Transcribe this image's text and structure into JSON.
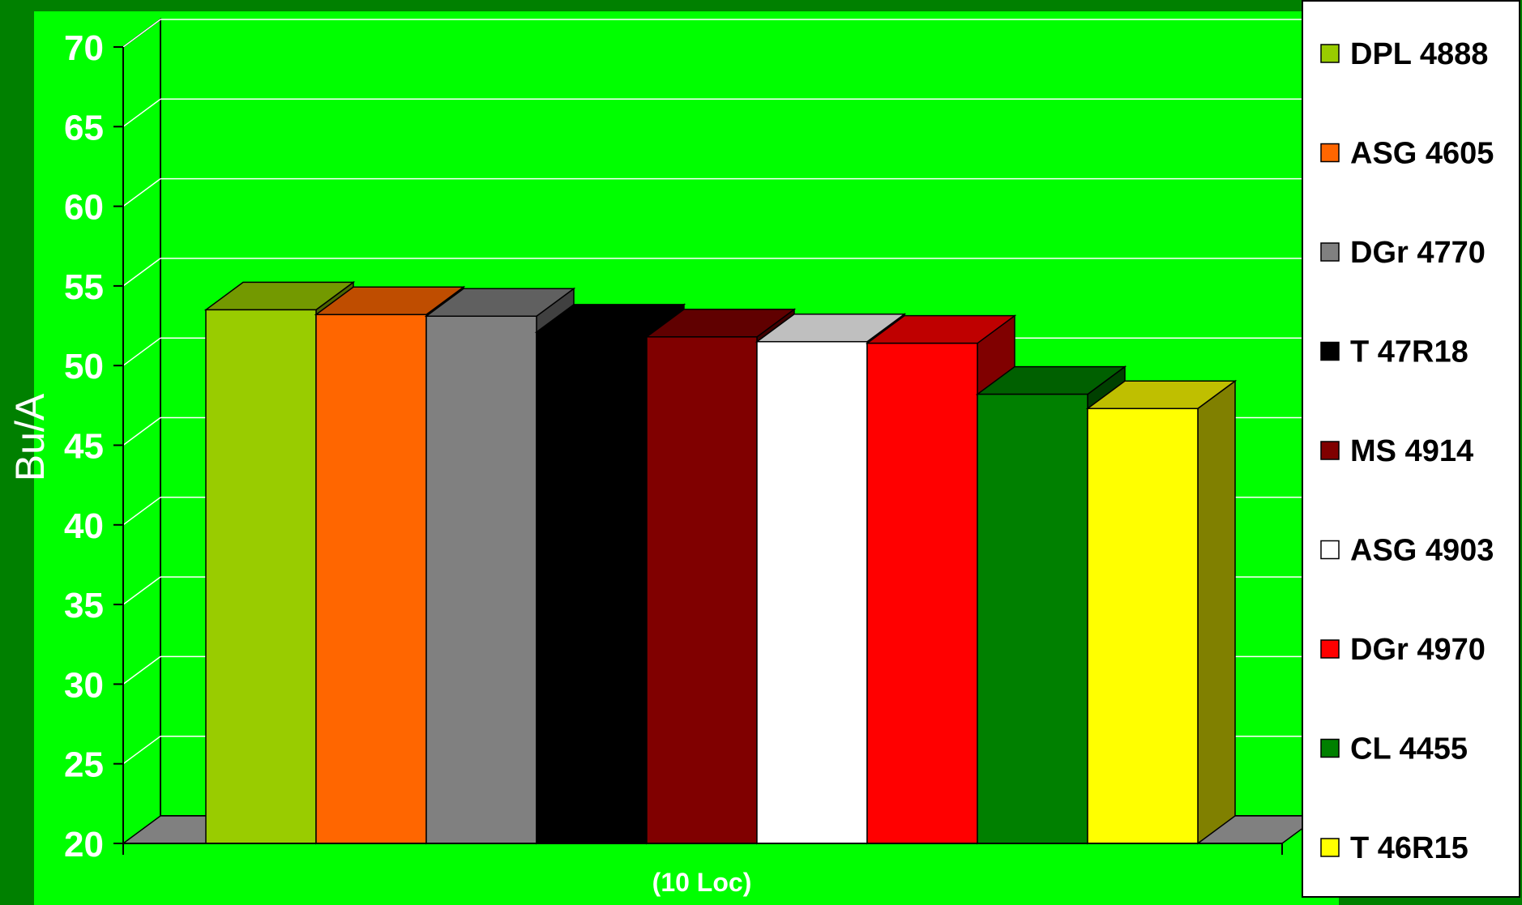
{
  "chart_data": {
    "type": "bar",
    "categories": [
      "(10 Loc)"
    ],
    "series": [
      {
        "name": "DPL 4888",
        "values": [
          53.5
        ],
        "color": "#99cc00"
      },
      {
        "name": "ASG 4605",
        "values": [
          53.2
        ],
        "color": "#ff6600"
      },
      {
        "name": "DGr 4770",
        "values": [
          53.1
        ],
        "color": "#808080"
      },
      {
        "name": "T 47R18",
        "values": [
          52.1
        ],
        "color": "#000000"
      },
      {
        "name": "MS 4914",
        "values": [
          51.8
        ],
        "color": "#800000"
      },
      {
        "name": "ASG 4903",
        "values": [
          51.5
        ],
        "color": "#ffffff"
      },
      {
        "name": "DGr 4970",
        "values": [
          51.4
        ],
        "color": "#ff0000"
      },
      {
        "name": "CL 4455",
        "values": [
          48.2
        ],
        "color": "#008000"
      },
      {
        "name": "T 46R15",
        "values": [
          47.3
        ],
        "color": "#ffff00"
      }
    ],
    "ylabel": "Bu/A",
    "xlabel": "",
    "ylim": [
      20,
      70
    ],
    "yticks": [
      20,
      25,
      30,
      35,
      40,
      45,
      50,
      55,
      60,
      65,
      70
    ],
    "grid": true,
    "legend_position": "right",
    "style": "3d-clustered-column"
  },
  "colors": {
    "outer_background": "#008000",
    "plot_background": "#00ff00",
    "gridline": "#ffffff",
    "floor": "#808080",
    "legend_background": "#ffffff",
    "text": "#ffffff"
  }
}
